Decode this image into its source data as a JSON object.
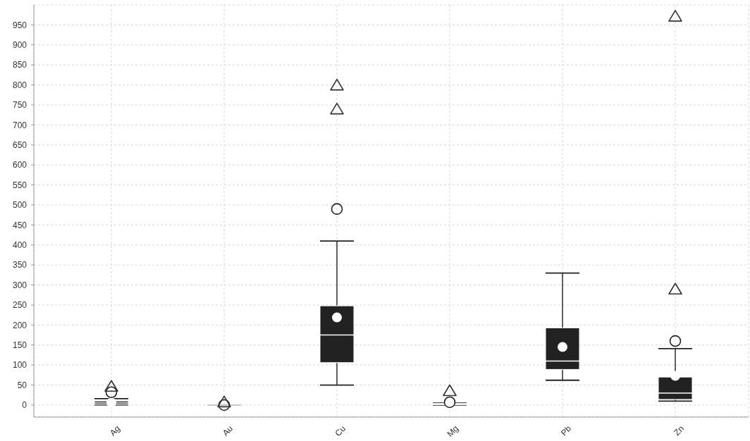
{
  "chart_data": {
    "type": "box",
    "categories": [
      "Ag",
      "Au",
      "Cu",
      "Mg",
      "Pb",
      "Zn"
    ],
    "series": [
      {
        "color": "#222222",
        "boxes": [
          {
            "low": 0,
            "q1": 1,
            "median": 5,
            "q3": 10,
            "high": 16,
            "mean": 6,
            "outliers": [
              32
            ]
          },
          {
            "low": 0,
            "q1": 0,
            "median": 0,
            "q3": 0,
            "high": 0,
            "outliers": [
              0
            ]
          },
          {
            "low": 50,
            "q1": 106,
            "median": 175,
            "q3": 248,
            "high": 410,
            "mean": 219,
            "outliers": [
              490
            ]
          },
          {
            "low": 0,
            "q1": 1,
            "median": 2,
            "q3": 4,
            "high": 5,
            "mean": 3,
            "outliers": [
              7
            ]
          },
          {
            "low": 62,
            "q1": 89,
            "median": 110,
            "q3": 193,
            "high": 330,
            "mean": 145
          },
          {
            "low": 10,
            "q1": 14,
            "median": 30,
            "q3": 70,
            "high": 141,
            "mean": 73,
            "outliers": [
              160
            ]
          }
        ]
      },
      {
        "type": "scatter",
        "color": "#333333",
        "marker": "triangle",
        "x": [
          "Ag",
          "Au",
          "Cu",
          "Cu",
          "Mg",
          "Zn",
          "Zn"
        ],
        "values": [
          47,
          8,
          800,
          740,
          36,
          290,
          972
        ]
      }
    ],
    "ylim": [
      -30,
      1000
    ],
    "yticks": [
      0,
      50,
      100,
      150,
      200,
      250,
      300,
      350,
      400,
      450,
      500,
      550,
      600,
      650,
      700,
      750,
      800,
      850,
      900,
      950
    ],
    "grid": true
  }
}
